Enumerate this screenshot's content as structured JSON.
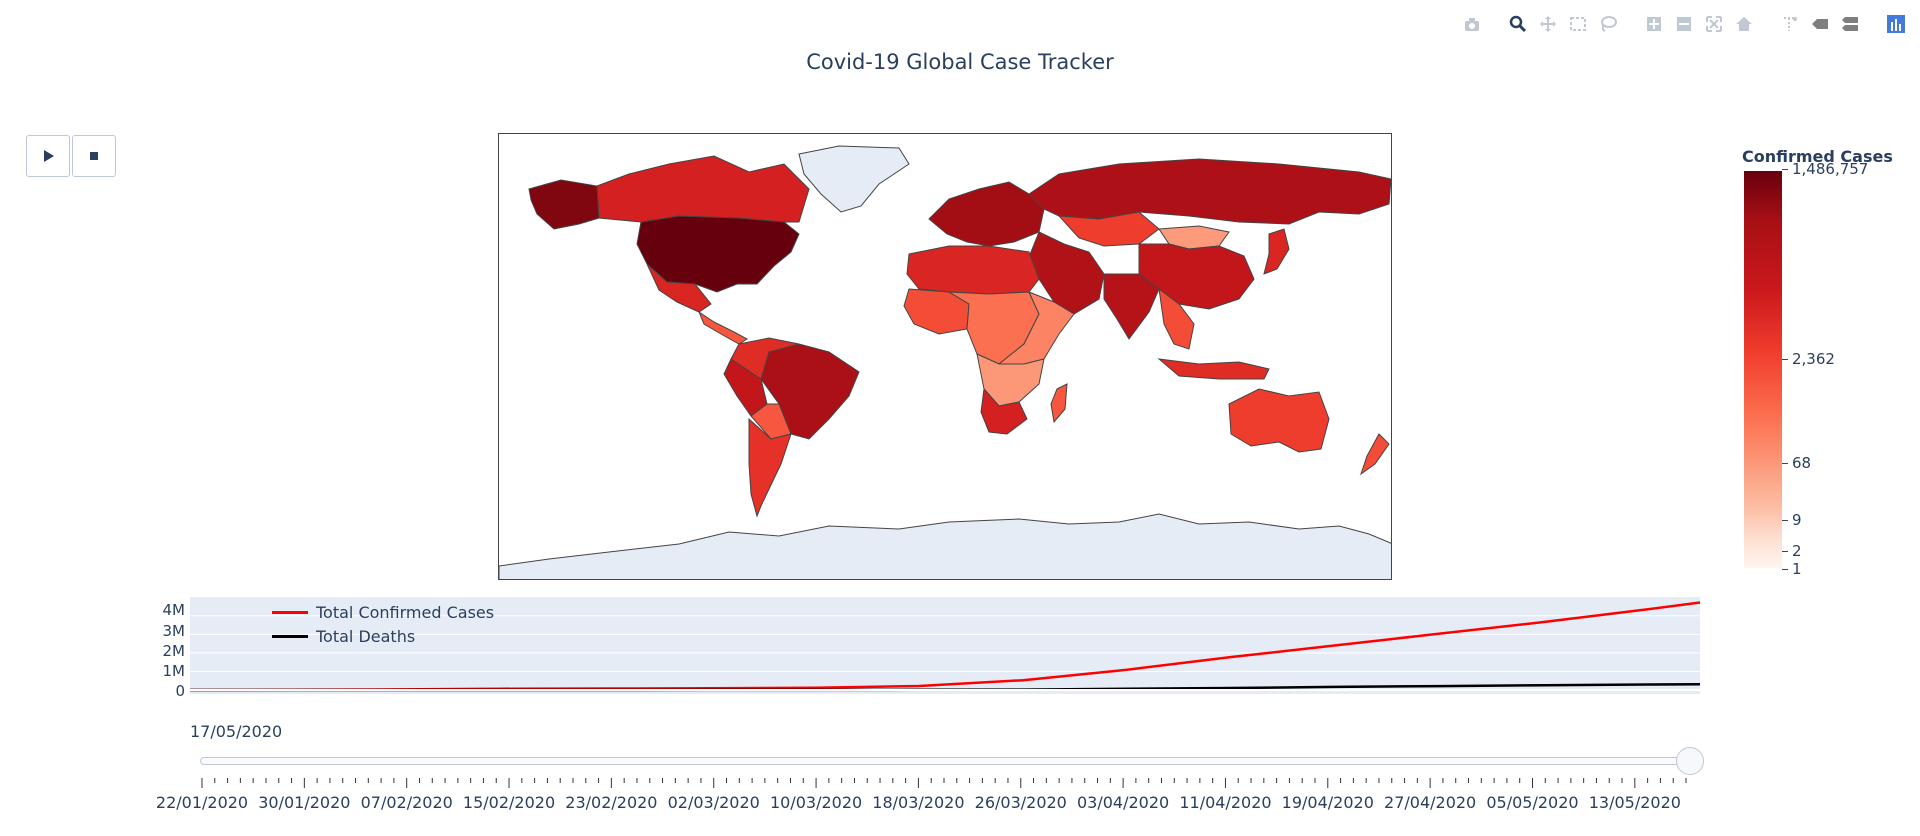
{
  "title": "Covid-19 Global Case Tracker",
  "modebar": [
    {
      "icon": "camera-icon"
    },
    {
      "icon": "zoom-icon"
    },
    {
      "icon": "pan-icon"
    },
    {
      "icon": "box-select-icon"
    },
    {
      "icon": "lasso-select-icon"
    },
    {
      "icon": "zoom-in-icon"
    },
    {
      "icon": "zoom-out-icon"
    },
    {
      "icon": "autoscale-icon"
    },
    {
      "icon": "home-icon"
    },
    {
      "icon": "spike-lines-icon"
    },
    {
      "icon": "hover-closest-icon"
    },
    {
      "icon": "hover-compare-icon"
    },
    {
      "icon": "plotly-logo-icon"
    }
  ],
  "controls": {
    "play_icon": "play-icon",
    "stop_icon": "stop-icon"
  },
  "colors": {
    "confirmed": "#ff0000",
    "deaths": "#000000",
    "land_default": "#e5ecf6",
    "plot_bg": "#e5ecf6",
    "text": "#2a3f5f"
  },
  "chart_data": [
    {
      "type": "choropleth",
      "colorscale": "Reds",
      "colorbar": {
        "title": "Confirmed Cases",
        "ticks": [
          "1,486,757",
          "2,362",
          "68",
          "9",
          "2",
          "1"
        ]
      },
      "regions": [
        {
          "name": "United States",
          "level": 1.0
        },
        {
          "name": "Alaska",
          "level": 0.95
        },
        {
          "name": "Canada",
          "level": 0.72
        },
        {
          "name": "Mexico",
          "level": 0.7
        },
        {
          "name": "Central America",
          "level": 0.55
        },
        {
          "name": "Brazil",
          "level": 0.86
        },
        {
          "name": "Peru",
          "level": 0.78
        },
        {
          "name": "Colombia/Venezuela",
          "level": 0.68
        },
        {
          "name": "Bolivia",
          "level": 0.55
        },
        {
          "name": "Chile/Argentina",
          "level": 0.66
        },
        {
          "name": "Greenland",
          "level": 0.0
        },
        {
          "name": "Europe",
          "level": 0.88
        },
        {
          "name": "Russia",
          "level": 0.85
        },
        {
          "name": "Kazakhstan",
          "level": 0.62
        },
        {
          "name": "Mongolia",
          "level": 0.35
        },
        {
          "name": "China",
          "level": 0.78
        },
        {
          "name": "Middle East",
          "level": 0.84
        },
        {
          "name": "India",
          "level": 0.82
        },
        {
          "name": "Southeast Asia",
          "level": 0.58
        },
        {
          "name": "Indonesia",
          "level": 0.68
        },
        {
          "name": "Japan",
          "level": 0.7
        },
        {
          "name": "North Africa",
          "level": 0.7
        },
        {
          "name": "West Africa",
          "level": 0.58
        },
        {
          "name": "Central Africa",
          "level": 0.48
        },
        {
          "name": "East Africa",
          "level": 0.42
        },
        {
          "name": "Southern Africa",
          "level": 0.36
        },
        {
          "name": "South Africa",
          "level": 0.72
        },
        {
          "name": "Madagascar",
          "level": 0.55
        },
        {
          "name": "Australia",
          "level": 0.62
        },
        {
          "name": "New Zealand",
          "level": 0.58
        },
        {
          "name": "Antarctica",
          "level": 0.0
        }
      ]
    },
    {
      "type": "line",
      "x": [
        "22/01/2020",
        "30/01/2020",
        "07/02/2020",
        "15/02/2020",
        "23/02/2020",
        "02/03/2020",
        "10/03/2020",
        "18/03/2020",
        "26/03/2020",
        "03/04/2020",
        "11/04/2020",
        "19/04/2020",
        "27/04/2020",
        "05/05/2020",
        "13/05/2020",
        "17/05/2020"
      ],
      "series": [
        {
          "name": "Total Confirmed Cases",
          "values": [
            555,
            9927,
            34391,
            69032,
            78958,
            90307,
            118582,
            214910,
            529591,
            1095917,
            1777666,
            2401378,
            3041764,
            3662691,
            4347018,
            4713620
          ]
        },
        {
          "name": "Total Deaths",
          "values": [
            17,
            213,
            719,
            1666,
            2462,
            3085,
            4262,
            8732,
            23970,
            62784,
            108502,
            165044,
            211167,
            257239,
            297197,
            315185
          ]
        }
      ],
      "ylim": [
        0,
        4700000
      ],
      "yticks": [
        "0",
        "1M",
        "2M",
        "3M",
        "4M"
      ],
      "grid": true,
      "legend": "top-left"
    }
  ],
  "slider": {
    "current_label": "17/05/2020",
    "tick_labels": [
      "22/01/2020",
      "30/01/2020",
      "07/02/2020",
      "15/02/2020",
      "23/02/2020",
      "02/03/2020",
      "10/03/2020",
      "18/03/2020",
      "26/03/2020",
      "03/04/2020",
      "11/04/2020",
      "19/04/2020",
      "27/04/2020",
      "05/05/2020",
      "13/05/2020"
    ],
    "position": 1.0
  }
}
